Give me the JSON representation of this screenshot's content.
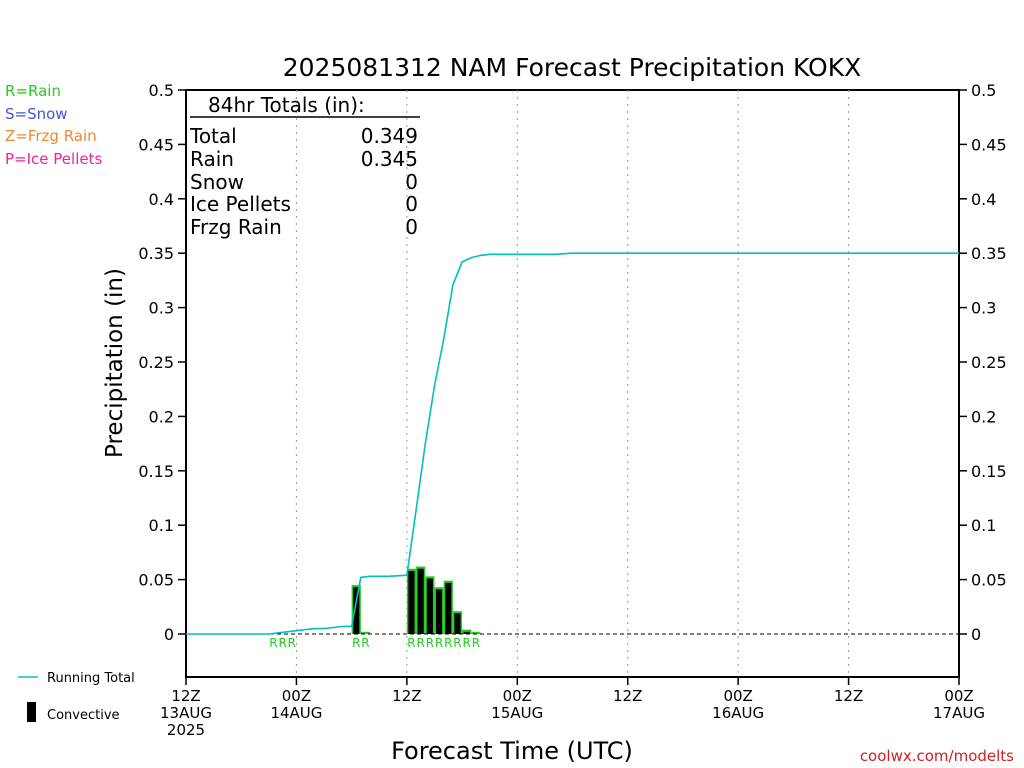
{
  "chart_data": {
    "type": "bar",
    "title": "2025081312 NAM Forecast Precipitation KOKX",
    "xlabel": "Forecast Time (UTC)",
    "ylabel": "Precipitation (in)",
    "ylim": [
      -0.04,
      0.5
    ],
    "x_range_hours": [
      0,
      84
    ],
    "y_ticks": [
      "0",
      "0.05",
      "0.1",
      "0.15",
      "0.2",
      "0.25",
      "0.3",
      "0.35",
      "0.4",
      "0.45",
      "0.5"
    ],
    "y_tick_values": [
      0,
      0.05,
      0.1,
      0.15,
      0.2,
      0.25,
      0.3,
      0.35,
      0.4,
      0.45,
      0.5
    ],
    "x_ticks": [
      {
        "hour": 0,
        "lines": [
          "12Z",
          "13AUG",
          "2025"
        ]
      },
      {
        "hour": 12,
        "lines": [
          "00Z",
          "14AUG"
        ]
      },
      {
        "hour": 24,
        "lines": [
          "12Z"
        ]
      },
      {
        "hour": 36,
        "lines": [
          "00Z",
          "15AUG"
        ]
      },
      {
        "hour": 48,
        "lines": [
          "12Z"
        ]
      },
      {
        "hour": 60,
        "lines": [
          "00Z",
          "16AUG"
        ]
      },
      {
        "hour": 72,
        "lines": [
          "12Z"
        ]
      },
      {
        "hour": 84,
        "lines": [
          "00Z",
          "17AUG"
        ]
      }
    ],
    "grid": "vertical-dotted",
    "legend_placement": "top-left",
    "precip_type_legend": [
      {
        "label": "R=Rain",
        "color": "#22cc22"
      },
      {
        "label": "S=Snow",
        "color": "#4455dd"
      },
      {
        "label": "Z=Frzg Rain",
        "color": "#ee8833"
      },
      {
        "label": "P=Ice Pellets",
        "color": "#ee2299"
      }
    ],
    "series": [
      {
        "name": "Running Total",
        "kind": "line",
        "color": "#00c0c0",
        "x": [
          0,
          9,
          10,
          11,
          12,
          13,
          14,
          15,
          16,
          17,
          18,
          19,
          20,
          22,
          24,
          25,
          26,
          27,
          28,
          29,
          30,
          31,
          32,
          33,
          34,
          35,
          36,
          40,
          42,
          46,
          84
        ],
        "y": [
          0,
          0,
          0.001,
          0.002,
          0.003,
          0.004,
          0.005,
          0.005,
          0.006,
          0.007,
          0.007,
          0.052,
          0.053,
          0.053,
          0.054,
          0.114,
          0.175,
          0.228,
          0.271,
          0.321,
          0.342,
          0.346,
          0.348,
          0.349,
          0.349,
          0.349,
          0.349,
          0.349,
          0.35,
          0.35,
          0.35
        ]
      },
      {
        "name": "Convective",
        "kind": "bar",
        "color": "#000000",
        "rain_color": "#22cc22",
        "bars": [
          {
            "hour": 19,
            "total": 0.045,
            "convective": 0.043
          },
          {
            "hour": 20,
            "total": 0.002,
            "convective": 0.0
          },
          {
            "hour": 25,
            "total": 0.06,
            "convective": 0.058
          },
          {
            "hour": 26,
            "total": 0.062,
            "convective": 0.06
          },
          {
            "hour": 27,
            "total": 0.053,
            "convective": 0.051
          },
          {
            "hour": 28,
            "total": 0.043,
            "convective": 0.041
          },
          {
            "hour": 29,
            "total": 0.049,
            "convective": 0.047
          },
          {
            "hour": 30,
            "total": 0.021,
            "convective": 0.019
          },
          {
            "hour": 31,
            "total": 0.004,
            "convective": 0.002
          },
          {
            "hour": 32,
            "total": 0.002,
            "convective": 0.0
          }
        ]
      }
    ],
    "precip_type_markers": [
      {
        "hour": 10,
        "label": "R"
      },
      {
        "hour": 11,
        "label": "R"
      },
      {
        "hour": 12,
        "label": "R"
      },
      {
        "hour": 19,
        "label": "R"
      },
      {
        "hour": 20,
        "label": "R"
      },
      {
        "hour": 25,
        "label": "R"
      },
      {
        "hour": 26,
        "label": "R"
      },
      {
        "hour": 27,
        "label": "R"
      },
      {
        "hour": 28,
        "label": "R"
      },
      {
        "hour": 29,
        "label": "R"
      },
      {
        "hour": 30,
        "label": "R"
      },
      {
        "hour": 31,
        "label": "R"
      },
      {
        "hour": 32,
        "label": "R"
      }
    ],
    "totals_box": {
      "heading": "84hr Totals (in):",
      "rows": [
        {
          "label": "Total",
          "value": "0.349"
        },
        {
          "label": "Rain",
          "value": "0.345"
        },
        {
          "label": "Snow",
          "value": "0"
        },
        {
          "label": "Ice Pellets",
          "value": "0"
        },
        {
          "label": "Frzg Rain",
          "value": "0"
        }
      ]
    },
    "bottom_legend": [
      {
        "label": "Running Total",
        "kind": "line"
      },
      {
        "label": "Convective",
        "kind": "bar"
      }
    ],
    "credit": "coolwx.com/modelts"
  }
}
